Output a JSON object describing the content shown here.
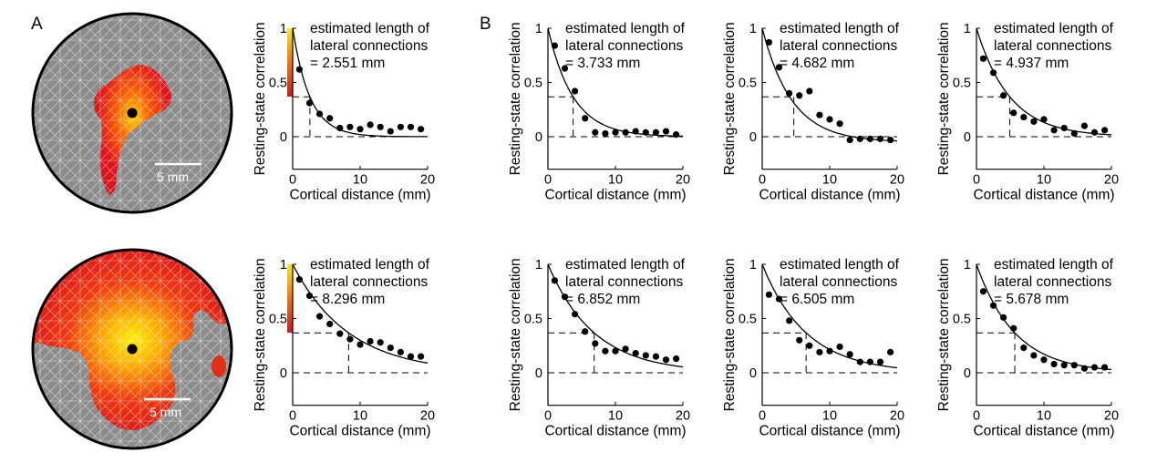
{
  "panel_labels": {
    "a": "A",
    "b": "B"
  },
  "brain_maps": [
    {
      "scale_bar_label": "5 mm",
      "activation": "small"
    },
    {
      "scale_bar_label": "5 mm",
      "activation": "large"
    }
  ],
  "colorbar": {
    "colors": [
      "#d8141c",
      "#ffee00"
    ]
  },
  "colors": {
    "fit_curve": "#000000",
    "points": "#000000",
    "threshold_line": "#000000"
  },
  "chart_data": [
    {
      "type": "scatter",
      "xlabel": "Cortical distance (mm)",
      "ylabel": "Resting-state correlation",
      "xlim": [
        0,
        20
      ],
      "ylim": [
        -0.3,
        1
      ],
      "xticks": [
        0,
        10,
        20
      ],
      "yticks": [
        0,
        0.5,
        1
      ],
      "annotation": [
        "estimated length of",
        "lateral connections",
        "= 2.551 mm"
      ],
      "length_mm": 2.551,
      "threshold": 0.368,
      "points": {
        "x": [
          1,
          2.5,
          4,
          5.5,
          7,
          8.5,
          10,
          11.5,
          13,
          14.5,
          16,
          17.5,
          19
        ],
        "y": [
          0.62,
          0.31,
          0.21,
          0.17,
          0.08,
          0.09,
          0.07,
          0.11,
          0.09,
          0.05,
          0.09,
          0.09,
          0.07
        ]
      },
      "fit": {
        "amplitude": 1.0,
        "decay_mm": 2.551,
        "offset": 0.0
      }
    },
    {
      "type": "scatter",
      "xlabel": "Cortical distance (mm)",
      "ylabel": "Resting-state correlation",
      "xlim": [
        0,
        20
      ],
      "ylim": [
        -0.3,
        1
      ],
      "xticks": [
        0,
        10,
        20
      ],
      "yticks": [
        0,
        0.5,
        1
      ],
      "annotation": [
        "estimated length of",
        "lateral connections",
        "= 3.733 mm"
      ],
      "length_mm": 3.733,
      "threshold": 0.368,
      "points": {
        "x": [
          1,
          2.5,
          4,
          5.5,
          7,
          8.5,
          10,
          11.5,
          13,
          14.5,
          16,
          17.5,
          19
        ],
        "y": [
          0.84,
          0.63,
          0.42,
          0.17,
          0.04,
          0.03,
          0.04,
          0.04,
          0.05,
          0.04,
          0.04,
          0.05,
          0.02
        ]
      },
      "fit": {
        "amplitude": 1.0,
        "decay_mm": 3.733,
        "offset": 0.0
      }
    },
    {
      "type": "scatter",
      "xlabel": "Cortical distance (mm)",
      "ylabel": "Resting-state correlation",
      "xlim": [
        0,
        20
      ],
      "ylim": [
        -0.3,
        1
      ],
      "xticks": [
        0,
        10,
        20
      ],
      "yticks": [
        0,
        0.5,
        1
      ],
      "annotation": [
        "estimated length of",
        "lateral connections",
        "= 4.682 mm"
      ],
      "length_mm": 4.682,
      "threshold": 0.368,
      "points": {
        "x": [
          1,
          2.5,
          4,
          5.5,
          7,
          8.5,
          10,
          11.5,
          13,
          14.5,
          16,
          17.5,
          19
        ],
        "y": [
          0.87,
          0.64,
          0.4,
          0.38,
          0.42,
          0.2,
          0.16,
          0.12,
          -0.03,
          -0.02,
          -0.02,
          -0.02,
          -0.03
        ]
      },
      "fit": {
        "amplitude": 1.05,
        "decay_mm": 4.4,
        "offset": -0.05
      }
    },
    {
      "type": "scatter",
      "xlabel": "Cortical distance (mm)",
      "ylabel": "Resting-state correlation",
      "xlim": [
        0,
        20
      ],
      "ylim": [
        -0.3,
        1
      ],
      "xticks": [
        0,
        10,
        20
      ],
      "yticks": [
        0,
        0.5,
        1
      ],
      "annotation": [
        "estimated length of",
        "lateral connections",
        "= 4.937 mm"
      ],
      "length_mm": 4.937,
      "threshold": 0.368,
      "points": {
        "x": [
          1,
          2.5,
          4,
          5.5,
          7,
          8.5,
          10,
          11.5,
          13,
          14.5,
          16,
          17.5,
          19
        ],
        "y": [
          0.72,
          0.59,
          0.38,
          0.22,
          0.18,
          0.14,
          0.16,
          0.06,
          0.08,
          0.03,
          0.1,
          0.04,
          0.06
        ]
      },
      "fit": {
        "amplitude": 1.0,
        "decay_mm": 4.937,
        "offset": 0.0
      }
    },
    {
      "type": "scatter",
      "xlabel": "Cortical distance (mm)",
      "ylabel": "Resting-state correlation",
      "xlim": [
        0,
        20
      ],
      "ylim": [
        -0.3,
        1
      ],
      "xticks": [
        0,
        10,
        20
      ],
      "yticks": [
        0,
        0.5,
        1
      ],
      "annotation": [
        "estimated length of",
        "lateral connections",
        "= 8.296 mm"
      ],
      "length_mm": 8.296,
      "threshold": 0.368,
      "points": {
        "x": [
          1,
          2.5,
          4,
          5.5,
          7,
          8.5,
          10,
          11.5,
          13,
          14.5,
          16,
          17.5,
          19
        ],
        "y": [
          0.86,
          0.71,
          0.52,
          0.45,
          0.36,
          0.31,
          0.26,
          0.29,
          0.28,
          0.23,
          0.19,
          0.15,
          0.15
        ]
      },
      "fit": {
        "amplitude": 1.0,
        "decay_mm": 8.296,
        "offset": 0.0
      }
    },
    {
      "type": "scatter",
      "xlabel": "Cortical distance (mm)",
      "ylabel": "Resting-state correlation",
      "xlim": [
        0,
        20
      ],
      "ylim": [
        -0.3,
        1
      ],
      "xticks": [
        0,
        10,
        20
      ],
      "yticks": [
        0,
        0.5,
        1
      ],
      "annotation": [
        "estimated length of",
        "lateral connections",
        "= 6.852 mm"
      ],
      "length_mm": 6.852,
      "threshold": 0.368,
      "points": {
        "x": [
          1,
          2.5,
          4,
          5.5,
          7,
          8.5,
          10,
          11.5,
          13,
          14.5,
          16,
          17.5,
          19
        ],
        "y": [
          0.85,
          0.7,
          0.54,
          0.38,
          0.27,
          0.2,
          0.2,
          0.22,
          0.18,
          0.16,
          0.15,
          0.12,
          0.13
        ]
      },
      "fit": {
        "amplitude": 1.0,
        "decay_mm": 6.852,
        "offset": 0.0
      }
    },
    {
      "type": "scatter",
      "xlabel": "Cortical distance (mm)",
      "ylabel": "Resting-state correlation",
      "xlim": [
        0,
        20
      ],
      "ylim": [
        -0.3,
        1
      ],
      "xticks": [
        0,
        10,
        20
      ],
      "yticks": [
        0,
        0.5,
        1
      ],
      "annotation": [
        "estimated length of",
        "lateral connections",
        "= 6.505 mm"
      ],
      "length_mm": 6.505,
      "threshold": 0.368,
      "points": {
        "x": [
          1,
          2.5,
          4,
          5.5,
          7,
          8.5,
          10,
          11.5,
          13,
          14.5,
          16,
          17.5,
          19
        ],
        "y": [
          0.72,
          0.68,
          0.48,
          0.3,
          0.25,
          0.19,
          0.2,
          0.24,
          0.17,
          0.1,
          0.1,
          0.1,
          0.19
        ]
      },
      "fit": {
        "amplitude": 1.0,
        "decay_mm": 6.505,
        "offset": 0.0
      }
    },
    {
      "type": "scatter",
      "xlabel": "Cortical distance (mm)",
      "ylabel": "Resting-state correlation",
      "xlim": [
        0,
        20
      ],
      "ylim": [
        -0.3,
        1
      ],
      "xticks": [
        0,
        10,
        20
      ],
      "yticks": [
        0,
        0.5,
        1
      ],
      "annotation": [
        "estimated length of",
        "lateral connections",
        "= 5.678 mm"
      ],
      "length_mm": 5.678,
      "threshold": 0.368,
      "points": {
        "x": [
          1,
          2.5,
          4,
          5.5,
          7,
          8.5,
          10,
          11.5,
          13,
          14.5,
          16,
          17.5,
          19
        ],
        "y": [
          0.75,
          0.62,
          0.51,
          0.41,
          0.23,
          0.16,
          0.12,
          0.08,
          0.07,
          0.07,
          0.04,
          0.05,
          0.05
        ]
      },
      "fit": {
        "amplitude": 1.0,
        "decay_mm": 5.678,
        "offset": 0.0
      }
    }
  ]
}
